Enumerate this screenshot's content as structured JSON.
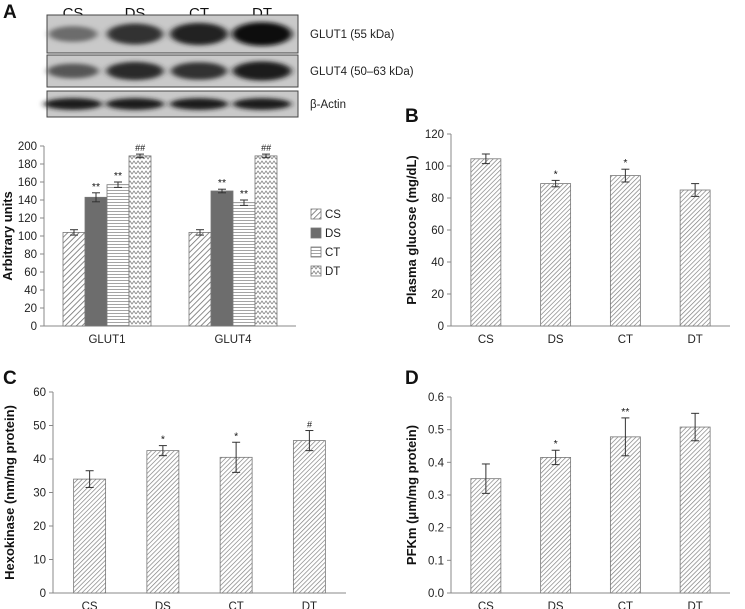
{
  "panels": {
    "A": {
      "letter": "A",
      "blot": {
        "lanes": [
          "CS",
          "DS",
          "CT",
          "DT"
        ],
        "rows": [
          {
            "label": "GLUT1 (55 kDa)",
            "intensity": [
              0.3,
              0.72,
              0.82,
              0.95
            ]
          },
          {
            "label": "GLUT4 (50–63 kDa)",
            "intensity": [
              0.45,
              0.78,
              0.72,
              0.88
            ]
          },
          {
            "label": "β-Actin",
            "intensity": [
              0.85,
              0.85,
              0.85,
              0.85
            ]
          }
        ]
      },
      "legend": [
        "CS",
        "DS",
        "CT",
        "DT"
      ]
    },
    "B": {
      "letter": "B"
    },
    "C": {
      "letter": "C"
    },
    "D": {
      "letter": "D"
    }
  },
  "chart_data": [
    {
      "id": "A",
      "type": "bar",
      "categories": [
        "GLUT1",
        "GLUT4"
      ],
      "series": [
        {
          "name": "CS",
          "values": [
            104,
            104
          ],
          "errors": [
            3,
            3
          ],
          "marks": [
            "",
            ""
          ],
          "pattern": "diag"
        },
        {
          "name": "DS",
          "values": [
            143,
            150
          ],
          "errors": [
            5,
            2
          ],
          "marks": [
            "**",
            "**"
          ],
          "pattern": "solid"
        },
        {
          "name": "CT",
          "values": [
            157,
            137
          ],
          "errors": [
            3,
            3
          ],
          "marks": [
            "**",
            "**"
          ],
          "pattern": "horiz"
        },
        {
          "name": "DT",
          "values": [
            189,
            189
          ],
          "errors": [
            2,
            2
          ],
          "marks": [
            "##",
            "##"
          ],
          "pattern": "zigzag"
        }
      ],
      "ylabel": "Arbitrary units",
      "ylim": [
        0,
        200
      ],
      "yticks": [
        0,
        20,
        40,
        60,
        80,
        100,
        120,
        140,
        160,
        180,
        200
      ],
      "legend_position": "right",
      "grid": false
    },
    {
      "id": "B",
      "type": "bar",
      "categories": [
        "CS",
        "DS",
        "CT",
        "DT"
      ],
      "values": [
        104.5,
        89,
        94,
        85
      ],
      "errors": [
        3,
        2,
        4,
        4
      ],
      "marks": [
        "",
        "*",
        "*",
        ""
      ],
      "ylabel": "Plasma glucose (mg/dL)",
      "ylim": [
        0,
        120
      ],
      "yticks": [
        0,
        20,
        40,
        60,
        80,
        100,
        120
      ],
      "grid": false
    },
    {
      "id": "C",
      "type": "bar",
      "categories": [
        "CS",
        "DS",
        "CT",
        "DT"
      ],
      "values": [
        34,
        42.5,
        40.5,
        45.5
      ],
      "errors": [
        2.5,
        1.5,
        4.5,
        3
      ],
      "marks": [
        "",
        "*",
        "*",
        "#"
      ],
      "ylabel": "Hexokinase (nm/mg protein)",
      "ylim": [
        0,
        60
      ],
      "yticks": [
        0,
        10,
        20,
        30,
        40,
        50,
        60
      ],
      "grid": false
    },
    {
      "id": "D",
      "type": "bar",
      "categories": [
        "CS",
        "DS",
        "CT",
        "DT"
      ],
      "values": [
        0.35,
        0.415,
        0.478,
        0.508
      ],
      "errors": [
        0.045,
        0.022,
        0.058,
        0.042
      ],
      "marks": [
        "",
        "*",
        "**",
        ""
      ],
      "ylabel": "PFKm (μm/mg protein)",
      "ylim": [
        0,
        0.6
      ],
      "yticks": [
        0,
        0.1,
        0.2,
        0.3,
        0.4,
        0.5,
        0.6
      ],
      "tick_format": "fixed1",
      "grid": false
    }
  ]
}
